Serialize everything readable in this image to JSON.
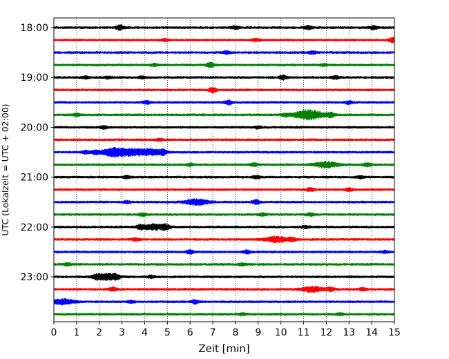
{
  "chart_data": {
    "type": "line",
    "title": "",
    "xlabel": "Zeit  [min]",
    "ylabel": "UTC (Lokalzeit = UTC + 02:00)",
    "xlim": [
      0,
      15
    ],
    "x_ticks": [
      "0",
      "1",
      "2",
      "3",
      "4",
      "5",
      "6",
      "7",
      "8",
      "9",
      "10",
      "11",
      "12",
      "13",
      "14",
      "15"
    ],
    "grid_x": "dotted",
    "y_ticks": [
      {
        "label": "18:00",
        "row": 0
      },
      {
        "label": "19:00",
        "row": 4
      },
      {
        "label": "20:00",
        "row": 8
      },
      {
        "label": "21:00",
        "row": 12
      },
      {
        "label": "22:00",
        "row": 16
      },
      {
        "label": "23:00",
        "row": 20
      }
    ],
    "row_interval_min": 15,
    "colors": [
      "#000000",
      "#ff0000",
      "#0000ff",
      "#008000"
    ],
    "traces": [
      {
        "start": "18:00",
        "color": "#000000",
        "events": [
          [
            2.9,
            3.2
          ],
          [
            8.0,
            2.2
          ],
          [
            11.2,
            2.2
          ],
          [
            14.1,
            2.4
          ]
        ]
      },
      {
        "start": "18:15",
        "color": "#ff0000",
        "events": [
          [
            14.9,
            3.0
          ],
          [
            8.9,
            1.8
          ],
          [
            4.9,
            1.6
          ]
        ]
      },
      {
        "start": "18:30",
        "color": "#0000ff",
        "events": [
          [
            7.6,
            2.0
          ],
          [
            11.4,
            1.8
          ]
        ]
      },
      {
        "start": "18:45",
        "color": "#008000",
        "events": [
          [
            6.9,
            3.2
          ],
          [
            4.4,
            1.6
          ],
          [
            11.9,
            1.6
          ]
        ]
      },
      {
        "start": "19:00",
        "color": "#000000",
        "events": [
          [
            10.1,
            2.6
          ],
          [
            12.4,
            2.0
          ],
          [
            1.4,
            1.6
          ],
          [
            2.4,
            1.5
          ],
          [
            3.9,
            1.6
          ]
        ]
      },
      {
        "start": "19:15",
        "color": "#ff0000",
        "events": [
          [
            7.0,
            3.4
          ]
        ]
      },
      {
        "start": "19:30",
        "color": "#0000ff",
        "events": [
          [
            7.7,
            2.8
          ],
          [
            4.1,
            2.2
          ],
          [
            13.0,
            1.8
          ]
        ]
      },
      {
        "start": "19:45",
        "color": "#008000",
        "events": [
          [
            11.0,
            4.5
          ],
          [
            11.5,
            3.8
          ],
          [
            12.2,
            3.0
          ],
          [
            10.2,
            2.0
          ],
          [
            1.0,
            1.8
          ]
        ]
      },
      {
        "start": "20:00",
        "color": "#000000",
        "events": [
          [
            2.2,
            2.0
          ],
          [
            9.0,
            1.5
          ]
        ]
      },
      {
        "start": "20:15",
        "color": "#ff0000",
        "events": [
          [
            4.7,
            1.5
          ]
        ]
      },
      {
        "start": "20:30",
        "color": "#0000ff",
        "events": [
          [
            2.6,
            5.5
          ],
          [
            3.4,
            4.0
          ],
          [
            4.2,
            4.2
          ],
          [
            4.8,
            3.2
          ],
          [
            1.4,
            2.0
          ],
          [
            1.8,
            2.2
          ]
        ]
      },
      {
        "start": "20:45",
        "color": "#008000",
        "events": [
          [
            12.0,
            4.0
          ],
          [
            13.8,
            2.4
          ],
          [
            8.8,
            2.0
          ],
          [
            6.0,
            1.6
          ]
        ]
      },
      {
        "start": "21:00",
        "color": "#000000",
        "events": [
          [
            8.9,
            2.0
          ],
          [
            3.2,
            1.8
          ],
          [
            13.5,
            1.6
          ]
        ]
      },
      {
        "start": "21:15",
        "color": "#ff0000",
        "events": [
          [
            11.3,
            2.6
          ],
          [
            13.0,
            1.8
          ]
        ]
      },
      {
        "start": "21:30",
        "color": "#0000ff",
        "events": [
          [
            6.3,
            4.0
          ],
          [
            8.9,
            2.8
          ],
          [
            3.2,
            1.5
          ]
        ]
      },
      {
        "start": "21:45",
        "color": "#008000",
        "events": [
          [
            3.9,
            2.0
          ],
          [
            9.2,
            1.8
          ],
          [
            11.3,
            1.8
          ]
        ]
      },
      {
        "start": "22:00",
        "color": "#000000",
        "events": [
          [
            4.4,
            3.8
          ],
          [
            4.9,
            3.2
          ],
          [
            3.8,
            2.6
          ],
          [
            11.1,
            1.6
          ]
        ]
      },
      {
        "start": "22:15",
        "color": "#ff0000",
        "events": [
          [
            9.8,
            3.6
          ],
          [
            10.5,
            2.2
          ],
          [
            3.6,
            1.8
          ]
        ]
      },
      {
        "start": "22:30",
        "color": "#0000ff",
        "events": [
          [
            6.0,
            2.4
          ],
          [
            8.5,
            2.2
          ],
          [
            14.6,
            1.5
          ]
        ]
      },
      {
        "start": "22:45",
        "color": "#008000",
        "events": [
          [
            0.6,
            1.8
          ],
          [
            8.3,
            1.6
          ]
        ]
      },
      {
        "start": "23:00",
        "color": "#000000",
        "events": [
          [
            2.3,
            4.2
          ],
          [
            2.7,
            3.0
          ],
          [
            1.9,
            2.2
          ],
          [
            4.3,
            1.8
          ]
        ]
      },
      {
        "start": "23:15",
        "color": "#ff0000",
        "events": [
          [
            11.4,
            3.6
          ],
          [
            2.6,
            2.6
          ],
          [
            12.2,
            2.2
          ],
          [
            13.6,
            1.8
          ]
        ]
      },
      {
        "start": "23:30",
        "color": "#0000ff",
        "events": [
          [
            0.4,
            3.6
          ],
          [
            6.2,
            2.4
          ],
          [
            3.4,
            1.6
          ]
        ]
      },
      {
        "start": "23:45",
        "color": "#008000",
        "events": [
          [
            8.3,
            1.5
          ],
          [
            12.6,
            1.4
          ]
        ]
      }
    ]
  }
}
